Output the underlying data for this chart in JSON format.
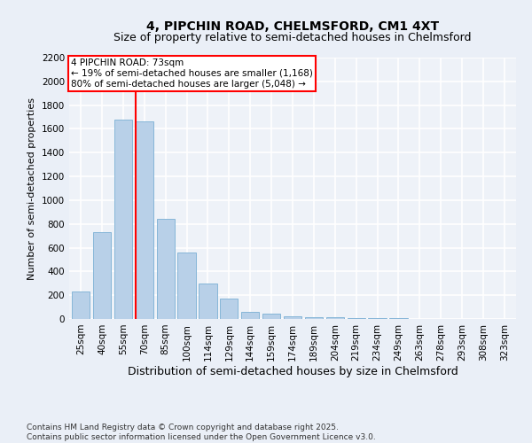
{
  "title": "4, PIPCHIN ROAD, CHELMSFORD, CM1 4XT",
  "subtitle": "Size of property relative to semi-detached houses in Chelmsford",
  "xlabel": "Distribution of semi-detached houses by size in Chelmsford",
  "ylabel": "Number of semi-detached properties",
  "categories": [
    "25sqm",
    "40sqm",
    "55sqm",
    "70sqm",
    "85sqm",
    "100sqm",
    "114sqm",
    "129sqm",
    "144sqm",
    "159sqm",
    "174sqm",
    "189sqm",
    "204sqm",
    "219sqm",
    "234sqm",
    "249sqm",
    "263sqm",
    "278sqm",
    "293sqm",
    "308sqm",
    "323sqm"
  ],
  "values": [
    230,
    730,
    1680,
    1660,
    840,
    560,
    295,
    175,
    60,
    45,
    25,
    18,
    12,
    8,
    5,
    4,
    3,
    2,
    1,
    1,
    0
  ],
  "bar_color": "#b8d0e8",
  "bar_edge_color": "#7aafd4",
  "vline_color": "red",
  "vline_bar_index": 3,
  "annotation_text": "4 PIPCHIN ROAD: 73sqm\n← 19% of semi-detached houses are smaller (1,168)\n80% of semi-detached houses are larger (5,048) →",
  "annotation_box_color": "white",
  "annotation_box_edge_color": "red",
  "ylim": [
    0,
    2200
  ],
  "yticks": [
    0,
    200,
    400,
    600,
    800,
    1000,
    1200,
    1400,
    1600,
    1800,
    2000,
    2200
  ],
  "background_color": "#eaeff7",
  "plot_background_color": "#eef2f8",
  "grid_color": "white",
  "footnote": "Contains HM Land Registry data © Crown copyright and database right 2025.\nContains public sector information licensed under the Open Government Licence v3.0.",
  "title_fontsize": 10,
  "subtitle_fontsize": 9,
  "xlabel_fontsize": 9,
  "ylabel_fontsize": 8,
  "tick_fontsize": 7.5,
  "annotation_fontsize": 7.5,
  "footnote_fontsize": 6.5
}
